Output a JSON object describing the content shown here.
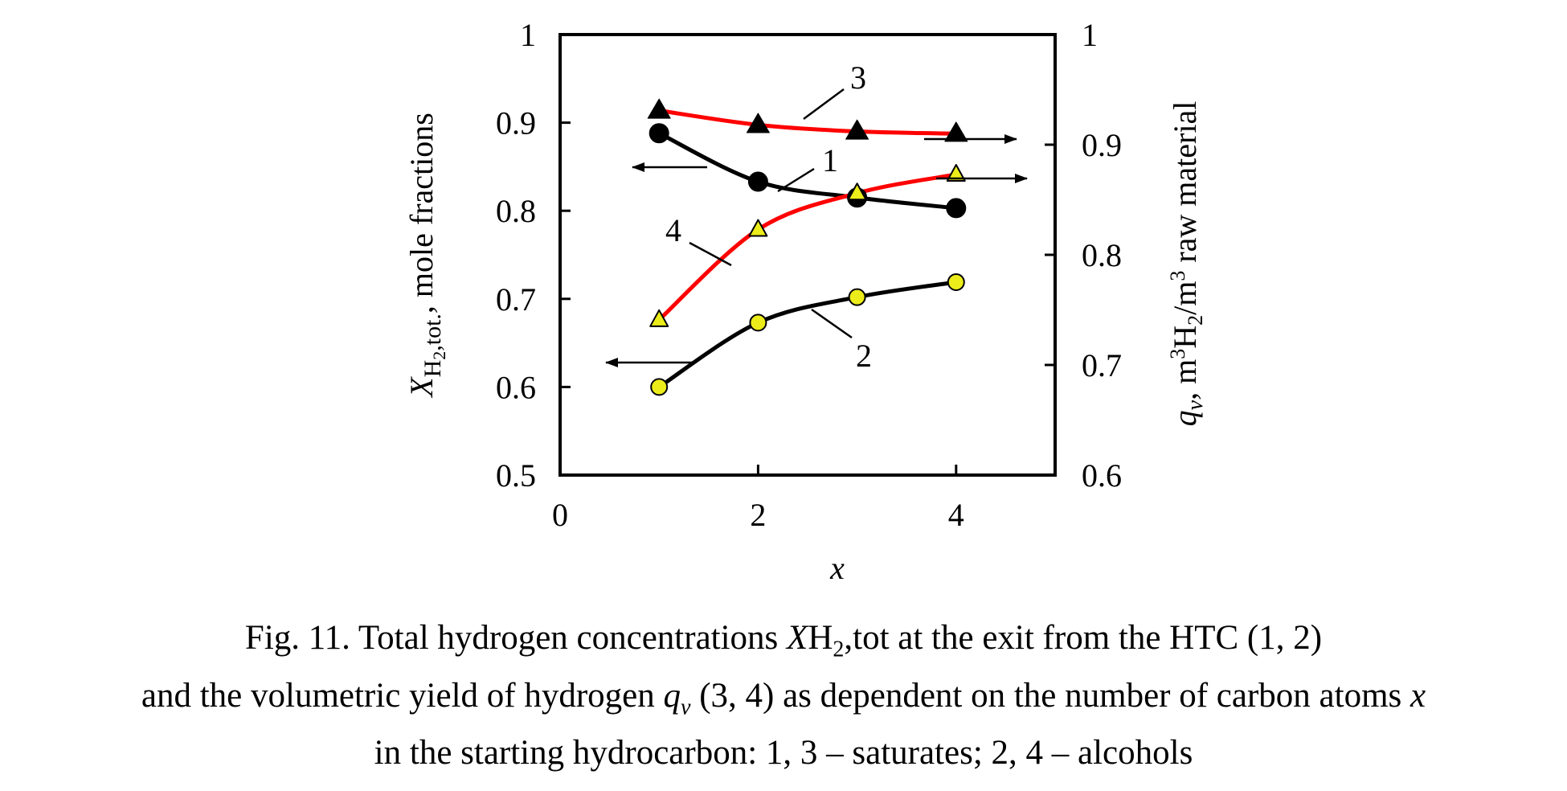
{
  "chart_data": {
    "type": "line",
    "x": [
      1,
      2,
      3,
      4
    ],
    "xlabel": "x",
    "xlim": [
      0,
      5
    ],
    "xticks": [
      "0",
      "2",
      "4"
    ],
    "ylim_left": [
      0.5,
      1.0
    ],
    "yticks_left": [
      "0.5",
      "0.6",
      "0.7",
      "0.8",
      "0.9",
      "1"
    ],
    "ylabel_left": {
      "pre": "X",
      "sub1": "H",
      "sub2": "2",
      "subrest": ",tot.",
      "post": ", mole fractions"
    },
    "ylim_right": [
      0.6,
      1.0
    ],
    "yticks_right": [
      "0.6",
      "0.7",
      "0.8",
      "0.9",
      "1"
    ],
    "ylabel_right": {
      "pre": "q",
      "sub": "v",
      "mid": ", m",
      "sup": "3",
      "h": "H",
      "hsub": "2",
      "slash": "/m",
      "sup2": "3",
      "post": " raw material"
    },
    "grid": false,
    "legend": "none",
    "series": [
      {
        "label": "1",
        "axis": "left",
        "marker": "circle",
        "marker_fill": "#000000",
        "line_color": "#000000",
        "values": [
          0.888,
          0.833,
          0.815,
          0.803
        ]
      },
      {
        "label": "2",
        "axis": "left",
        "marker": "circle",
        "marker_fill": "#ecec1a",
        "line_color": "#000000",
        "values": [
          0.6,
          0.673,
          0.702,
          0.719
        ]
      },
      {
        "label": "3",
        "axis": "right",
        "marker": "triangle",
        "marker_fill": "#000000",
        "line_color": "#ff0000",
        "values": [
          0.931,
          0.918,
          0.912,
          0.91
        ]
      },
      {
        "label": "4",
        "axis": "right",
        "marker": "triangle",
        "marker_fill": "#ecec1a",
        "line_color": "#ff0000",
        "values": [
          0.741,
          0.823,
          0.856,
          0.873
        ]
      }
    ]
  },
  "caption": {
    "line1_a": "Fig. 11. Total hydrogen concentrations ",
    "line1_x": "X",
    "line1_h": "H",
    "line1_sub": "2",
    "line1_b": ",tot at the exit from the HTC (1, 2)",
    "line2_a": "and the volumetric yield of hydrogen ",
    "line2_q": "q",
    "line2_v": "v",
    "line2_b": " (3, 4) as dependent on the number of carbon atoms ",
    "line2_x": "x",
    "line3": "in the starting hydrocarbon: 1, 3 – saturates; 2, 4 – alcohols"
  }
}
